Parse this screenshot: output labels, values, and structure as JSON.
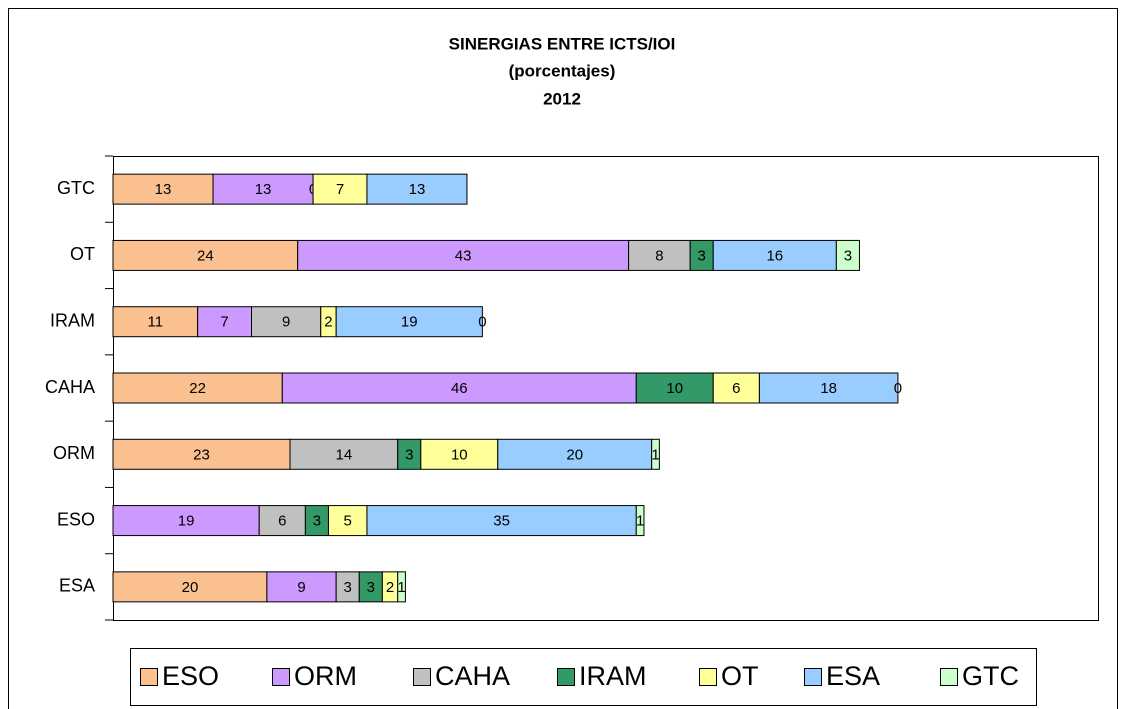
{
  "chart_data": {
    "type": "stacked-barh",
    "title": [
      "SINERGIAS ENTRE ICTS/IOI",
      "(porcentajes)",
      "2012"
    ],
    "categories": [
      "GTC",
      "OT",
      "IRAM",
      "CAHA",
      "ORM",
      "ESO",
      "ESA"
    ],
    "series": [
      {
        "name": "ESO",
        "color": "#fac090",
        "values": [
          13,
          24,
          11,
          22,
          23,
          null,
          20
        ]
      },
      {
        "name": "ORM",
        "color": "#cc99ff",
        "values": [
          13,
          43,
          7,
          46,
          null,
          19,
          9
        ]
      },
      {
        "name": "CAHA",
        "color": "#c0c0c0",
        "values": [
          0,
          8,
          9,
          null,
          14,
          6,
          3
        ]
      },
      {
        "name": "IRAM",
        "color": "#339966",
        "values": [
          null,
          3,
          null,
          10,
          3,
          3,
          3
        ]
      },
      {
        "name": "OT",
        "color": "#ffff99",
        "values": [
          7,
          null,
          2,
          6,
          10,
          5,
          2
        ]
      },
      {
        "name": "ESA",
        "color": "#99ccff",
        "values": [
          13,
          16,
          19,
          18,
          20,
          35,
          null
        ]
      },
      {
        "name": "GTC",
        "color": "#ccffcc",
        "values": [
          null,
          3,
          0,
          0,
          1,
          1,
          1
        ]
      }
    ],
    "xlim": [
      0,
      128
    ]
  }
}
